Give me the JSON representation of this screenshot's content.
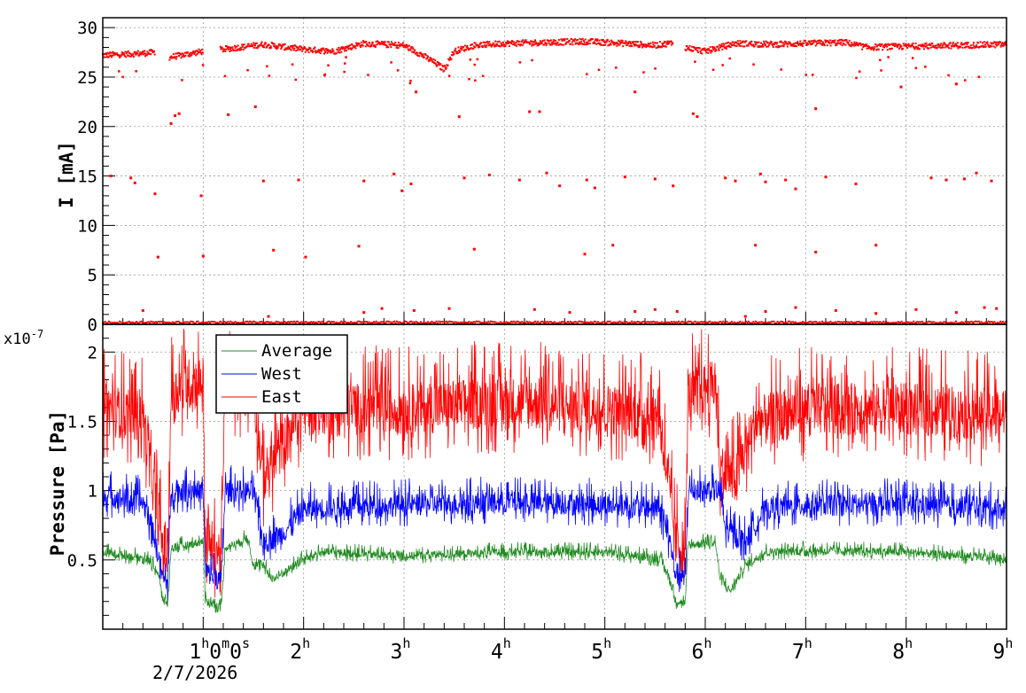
{
  "chart_data": [
    {
      "type": "scatter",
      "ylabel": "I [mA]",
      "ylim": [
        0,
        31
      ],
      "yticks": [
        0,
        5,
        10,
        15,
        20,
        25,
        30
      ],
      "ytick_labels": [
        "0",
        "5",
        "10",
        "15",
        "20",
        "25",
        "30"
      ],
      "xlim": [
        0,
        9
      ],
      "grid": true,
      "series": [
        {
          "color": "#ff0000",
          "baseline": [
            [
              0.0,
              27.2
            ],
            [
              0.4,
              27.4
            ],
            [
              0.52,
              27.5
            ],
            [
              0.67,
              27.0
            ],
            [
              1.0,
              27.6
            ],
            [
              1.2,
              27.8
            ],
            [
              1.6,
              28.3
            ],
            [
              2.0,
              27.8
            ],
            [
              2.3,
              27.6
            ],
            [
              2.6,
              28.4
            ],
            [
              3.0,
              28.2
            ],
            [
              3.15,
              27.4
            ],
            [
              3.3,
              26.5
            ],
            [
              3.4,
              25.8
            ],
            [
              3.5,
              27.6
            ],
            [
              3.7,
              28.2
            ],
            [
              4.0,
              28.4
            ],
            [
              4.4,
              28.5
            ],
            [
              4.8,
              28.6
            ],
            [
              5.2,
              28.4
            ],
            [
              5.5,
              28.2
            ],
            [
              5.7,
              28.5
            ],
            [
              5.8,
              28.0
            ],
            [
              6.0,
              27.6
            ],
            [
              6.3,
              28.4
            ],
            [
              6.7,
              28.3
            ],
            [
              7.0,
              28.4
            ],
            [
              7.4,
              28.5
            ],
            [
              7.6,
              28.0
            ],
            [
              8.0,
              28.1
            ],
            [
              8.5,
              28.2
            ],
            [
              9.0,
              28.3
            ]
          ],
          "gaps": [
            [
              0.52,
              0.66
            ],
            [
              1.0,
              1.17
            ],
            [
              5.68,
              5.8
            ]
          ],
          "outliers": [
            [
              0.08,
              15.0
            ],
            [
              0.28,
              14.8
            ],
            [
              0.32,
              14.3
            ],
            [
              0.52,
              13.2
            ],
            [
              0.55,
              6.8
            ],
            [
              0.68,
              20.3
            ],
            [
              0.72,
              21.1
            ],
            [
              0.76,
              21.3
            ],
            [
              0.98,
              13.0
            ],
            [
              1.0,
              6.9
            ],
            [
              1.25,
              21.2
            ],
            [
              1.52,
              22.0
            ],
            [
              1.6,
              14.5
            ],
            [
              1.7,
              7.5
            ],
            [
              1.95,
              14.6
            ],
            [
              2.02,
              6.8
            ],
            [
              2.55,
              7.9
            ],
            [
              2.6,
              14.5
            ],
            [
              2.9,
              15.2
            ],
            [
              2.98,
              13.5
            ],
            [
              3.07,
              14.2
            ],
            [
              3.12,
              23.5
            ],
            [
              3.55,
              21.0
            ],
            [
              3.6,
              14.8
            ],
            [
              3.7,
              7.6
            ],
            [
              3.85,
              15.1
            ],
            [
              4.15,
              14.6
            ],
            [
              4.25,
              21.5
            ],
            [
              4.35,
              21.5
            ],
            [
              4.42,
              15.3
            ],
            [
              4.55,
              14.0
            ],
            [
              4.8,
              7.1
            ],
            [
              4.82,
              14.6
            ],
            [
              4.9,
              13.8
            ],
            [
              5.08,
              8.0
            ],
            [
              5.2,
              14.9
            ],
            [
              5.3,
              23.5
            ],
            [
              5.5,
              14.7
            ],
            [
              5.68,
              14.0
            ],
            [
              5.88,
              21.3
            ],
            [
              5.92,
              21.0
            ],
            [
              6.2,
              14.8
            ],
            [
              6.3,
              14.5
            ],
            [
              6.5,
              8.0
            ],
            [
              6.55,
              15.2
            ],
            [
              6.6,
              14.4
            ],
            [
              6.8,
              14.6
            ],
            [
              6.9,
              13.7
            ],
            [
              7.1,
              7.3
            ],
            [
              7.1,
              21.8
            ],
            [
              7.2,
              14.9
            ],
            [
              7.5,
              14.2
            ],
            [
              7.7,
              8.0
            ],
            [
              7.95,
              24.0
            ],
            [
              8.25,
              14.8
            ],
            [
              8.4,
              14.6
            ],
            [
              8.5,
              24.3
            ],
            [
              8.58,
              14.7
            ],
            [
              8.7,
              15.3
            ],
            [
              8.85,
              14.5
            ],
            [
              0.4,
              1.4
            ],
            [
              1.65,
              0.8
            ],
            [
              2.6,
              1.2
            ],
            [
              2.78,
              1.6
            ],
            [
              3.1,
              1.4
            ],
            [
              3.45,
              1.6
            ],
            [
              4.3,
              1.5
            ],
            [
              4.65,
              1.2
            ],
            [
              5.3,
              1.3
            ],
            [
              5.5,
              1.5
            ],
            [
              5.72,
              1.3
            ],
            [
              6.4,
              0.8
            ],
            [
              6.6,
              1.3
            ],
            [
              6.9,
              1.7
            ],
            [
              7.3,
              1.4
            ],
            [
              7.7,
              1.1
            ],
            [
              8.1,
              1.5
            ],
            [
              8.5,
              1.2
            ],
            [
              8.78,
              1.7
            ],
            [
              8.9,
              1.6
            ]
          ]
        }
      ]
    },
    {
      "type": "line",
      "ylabel": "Pressure [Pa]",
      "yexp_label": "x10",
      "yexp_sup": "-7",
      "ylim": [
        0.0,
        2.2
      ],
      "yticks": [
        0.5,
        1.0,
        1.5,
        2.0
      ],
      "ytick_labels": [
        "0.5",
        "1",
        "1.5",
        "2"
      ],
      "xlim": [
        0,
        9
      ],
      "xticks": [
        1,
        2,
        3,
        4,
        5,
        6,
        7,
        8,
        9
      ],
      "xtick_labels": [
        "1",
        "2",
        "3",
        "4",
        "5",
        "6",
        "7",
        "8",
        "9"
      ],
      "xtick_sup": "h",
      "xstart_label": "1",
      "xstart_sup": [
        "h",
        "0",
        "m",
        "0",
        "s"
      ],
      "date_label": "2/7/2026",
      "grid": true,
      "legend": {
        "position": "top-left"
      },
      "series": [
        {
          "name": "Average",
          "color": "#228b22",
          "base": [
            [
              0.0,
              0.55
            ],
            [
              0.45,
              0.5
            ],
            [
              0.55,
              0.4
            ],
            [
              0.6,
              0.2
            ],
            [
              0.65,
              0.18
            ],
            [
              0.68,
              0.58
            ],
            [
              0.85,
              0.6
            ],
            [
              1.0,
              0.63
            ],
            [
              1.02,
              0.2
            ],
            [
              1.18,
              0.15
            ],
            [
              1.22,
              0.58
            ],
            [
              1.45,
              0.65
            ],
            [
              1.5,
              0.45
            ],
            [
              1.6,
              0.45
            ],
            [
              1.7,
              0.35
            ],
            [
              1.9,
              0.45
            ],
            [
              2.0,
              0.5
            ],
            [
              2.2,
              0.55
            ],
            [
              3.0,
              0.52
            ],
            [
              4.0,
              0.55
            ],
            [
              5.0,
              0.55
            ],
            [
              5.55,
              0.5
            ],
            [
              5.65,
              0.35
            ],
            [
              5.7,
              0.2
            ],
            [
              5.8,
              0.18
            ],
            [
              5.83,
              0.6
            ],
            [
              6.1,
              0.62
            ],
            [
              6.15,
              0.35
            ],
            [
              6.25,
              0.27
            ],
            [
              6.4,
              0.45
            ],
            [
              6.6,
              0.55
            ],
            [
              7.0,
              0.56
            ],
            [
              8.0,
              0.55
            ],
            [
              9.0,
              0.5
            ]
          ],
          "noise": 0.06
        },
        {
          "name": "West",
          "color": "#0000ff",
          "base": [
            [
              0.0,
              0.95
            ],
            [
              0.4,
              0.9
            ],
            [
              0.5,
              0.7
            ],
            [
              0.6,
              0.35
            ],
            [
              0.65,
              0.32
            ],
            [
              0.68,
              0.98
            ],
            [
              1.0,
              0.98
            ],
            [
              1.02,
              0.4
            ],
            [
              1.18,
              0.33
            ],
            [
              1.22,
              0.98
            ],
            [
              1.5,
              0.98
            ],
            [
              1.6,
              0.6
            ],
            [
              1.8,
              0.68
            ],
            [
              2.0,
              0.85
            ],
            [
              3.0,
              0.88
            ],
            [
              4.0,
              0.9
            ],
            [
              5.0,
              0.88
            ],
            [
              5.55,
              0.85
            ],
            [
              5.65,
              0.6
            ],
            [
              5.7,
              0.4
            ],
            [
              5.8,
              0.33
            ],
            [
              5.83,
              0.98
            ],
            [
              6.15,
              0.98
            ],
            [
              6.2,
              0.7
            ],
            [
              6.4,
              0.62
            ],
            [
              6.6,
              0.85
            ],
            [
              7.0,
              0.88
            ],
            [
              8.0,
              0.88
            ],
            [
              9.0,
              0.85
            ]
          ],
          "noise": 0.16
        },
        {
          "name": "East",
          "color": "#ff0000",
          "base": [
            [
              0.0,
              1.55
            ],
            [
              0.4,
              1.5
            ],
            [
              0.5,
              1.0
            ],
            [
              0.6,
              0.55
            ],
            [
              0.65,
              0.5
            ],
            [
              0.68,
              1.65
            ],
            [
              0.9,
              1.75
            ],
            [
              1.0,
              1.75
            ],
            [
              1.02,
              0.6
            ],
            [
              1.18,
              0.5
            ],
            [
              1.22,
              1.7
            ],
            [
              1.5,
              1.7
            ],
            [
              1.6,
              1.05
            ],
            [
              1.8,
              1.3
            ],
            [
              2.0,
              1.55
            ],
            [
              3.0,
              1.55
            ],
            [
              4.0,
              1.6
            ],
            [
              5.0,
              1.55
            ],
            [
              5.55,
              1.5
            ],
            [
              5.65,
              0.9
            ],
            [
              5.7,
              0.6
            ],
            [
              5.8,
              0.5
            ],
            [
              5.83,
              1.65
            ],
            [
              6.1,
              1.72
            ],
            [
              6.15,
              1.1
            ],
            [
              6.3,
              1.05
            ],
            [
              6.5,
              1.45
            ],
            [
              7.0,
              1.55
            ],
            [
              8.0,
              1.55
            ],
            [
              9.0,
              1.5
            ]
          ],
          "noise": 0.38
        }
      ]
    }
  ]
}
